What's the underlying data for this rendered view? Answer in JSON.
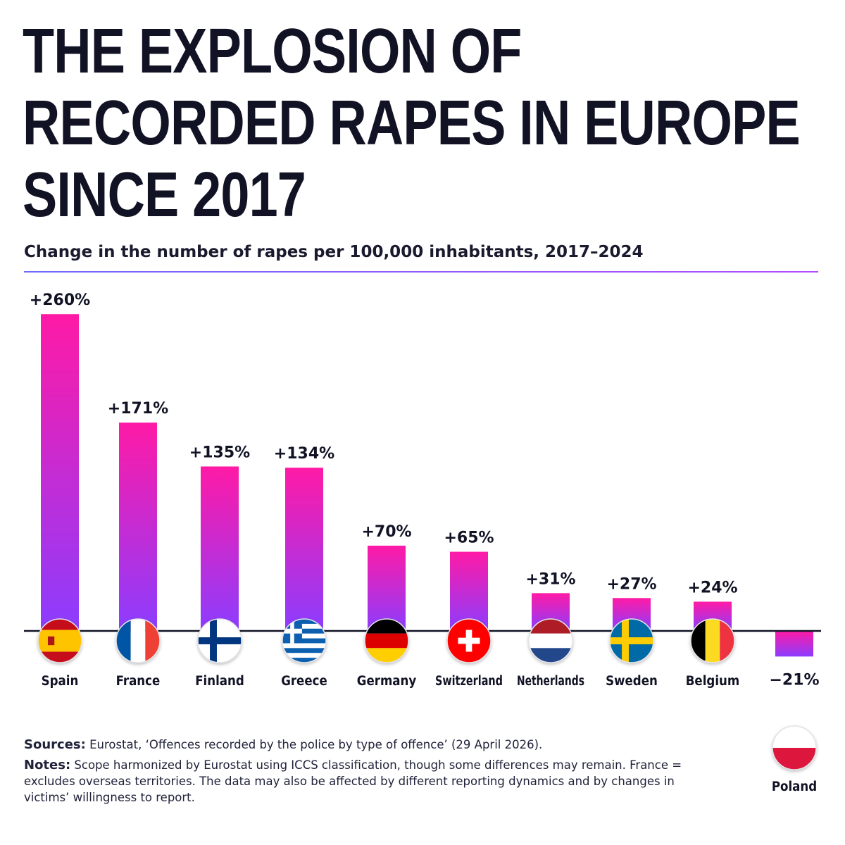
{
  "header": {
    "title_lines": [
      "THE EXPLOSION OF",
      "RECORDED RAPES IN EUROPE",
      "SINCE 2017"
    ],
    "subtitle": "Change in the number of rapes per 100,000 inhabitants, 2017–2024"
  },
  "colors": {
    "bar_top": "#ff1aa6",
    "bar_bottom": "#8b3dff",
    "baseline": "#111325",
    "text": "#111325"
  },
  "chart_data": {
    "type": "bar",
    "unit": "%",
    "categories": [
      "Spain",
      "France",
      "Finland",
      "Greece",
      "Germany",
      "Switzerland",
      "Netherlands",
      "Sweden",
      "Belgium",
      "Poland"
    ],
    "values": [
      260,
      171,
      135,
      134,
      70,
      65,
      31,
      27,
      24,
      -21
    ],
    "value_labels": [
      "+260%",
      "+171%",
      "+135%",
      "+134%",
      "+70%",
      "+65%",
      "+31%",
      "+27%",
      "+24%",
      "−21%"
    ],
    "flag_icons": [
      "flag-spain-icon",
      "flag-france-icon",
      "flag-finland-icon",
      "flag-greece-icon",
      "flag-germany-icon",
      "flag-switzerland-icon",
      "flag-netherlands-icon",
      "flag-sweden-icon",
      "flag-belgium-icon",
      "flag-poland-icon"
    ],
    "grid": false,
    "legend": "none"
  },
  "footer": {
    "sources_label": "Sources:",
    "sources_text": "Eurostat, ‘Offences recorded by the police by type of offence’ (29 April 2026).",
    "notes_label": "Notes:",
    "notes_text": "Scope harmonized by Eurostat using ICCS classification, though some differences may remain. France = excludes overseas territories. The data may also be affected by different reporting dynamics and by changes in victims’ willingness to report."
  }
}
